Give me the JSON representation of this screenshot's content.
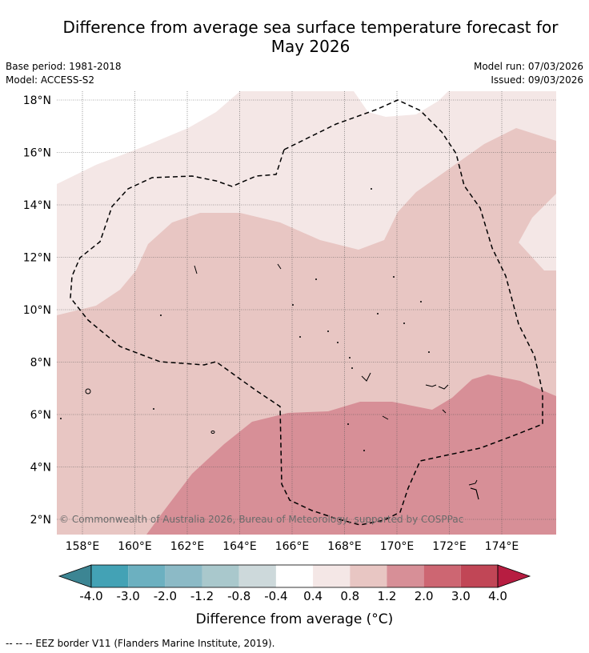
{
  "title_line1": "Difference from average sea surface temperature forecast for",
  "title_line2": "May 2026",
  "base_period": "Base period: 1981-2018",
  "model": "Model: ACCESS-S2",
  "model_run": "Model run: 07/03/2026",
  "issued": "Issued: 09/03/2026",
  "attribution": "© Commonwealth of Australia 2026, Bureau of Meteorology, supported by COSPPac",
  "lat_labels": [
    "2°N",
    "4°N",
    "6°N",
    "8°N",
    "10°N",
    "12°N",
    "14°N",
    "16°N",
    "18°N"
  ],
  "lon_labels": [
    "158°E",
    "160°E",
    "162°E",
    "164°E",
    "166°E",
    "168°E",
    "170°E",
    "172°E",
    "174°E"
  ],
  "colorbar": {
    "levels": [
      "-4.0",
      "-3.0",
      "-2.0",
      "-1.2",
      "-0.8",
      "-0.4",
      "0.4",
      "0.8",
      "1.2",
      "2.0",
      "3.0",
      "4.0"
    ],
    "colors": [
      "#43a2b5",
      "#6cb0c0",
      "#8cbac6",
      "#a9c8cc",
      "#cdd9db",
      "#ffffff",
      "#f4e7e6",
      "#e8c6c3",
      "#d78f97",
      "#cd6672",
      "#c14656"
    ],
    "low_extend_color": "#3c8593",
    "high_extend_color": "#b71d41",
    "title": "Difference from average (°C)"
  },
  "legend_footer": "-- -- -- EEZ border V11 (Flanders Marine Institute, 2019)."
}
